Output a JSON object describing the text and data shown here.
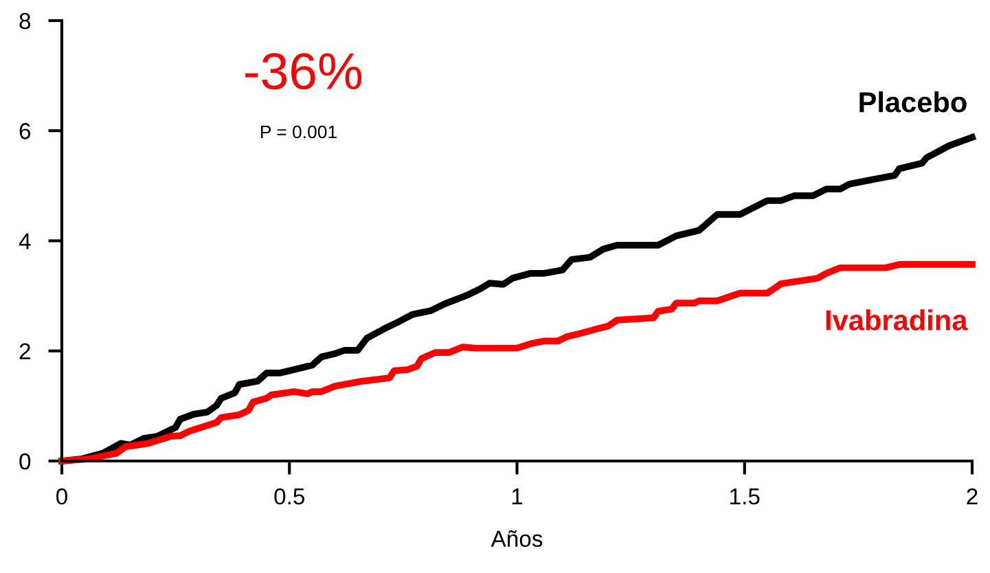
{
  "chart_data": {
    "type": "line",
    "xlabel": "Años",
    "xlim": [
      0,
      2
    ],
    "ylim": [
      0,
      8
    ],
    "xticks": [
      0,
      0.5,
      1,
      1.5,
      2
    ],
    "yticks": [
      0,
      2,
      4,
      6,
      8
    ],
    "grid": false,
    "legend": false,
    "marker": "none",
    "line_style": "solid",
    "annotations": [
      "-36%",
      "P = 0.001"
    ],
    "series": [
      {
        "name": "Placebo",
        "color": "#000000",
        "x": [
          0,
          0.045,
          0.09,
          0.13,
          0.15,
          0.18,
          0.21,
          0.25,
          0.26,
          0.29,
          0.32,
          0.34,
          0.35,
          0.38,
          0.39,
          0.43,
          0.45,
          0.48,
          0.51,
          0.55,
          0.57,
          0.6,
          0.62,
          0.65,
          0.67,
          0.71,
          0.74,
          0.77,
          0.81,
          0.84,
          0.89,
          0.92,
          0.94,
          0.97,
          0.99,
          1.03,
          1.06,
          1.1,
          1.12,
          1.16,
          1.19,
          1.22,
          1.31,
          1.35,
          1.4,
          1.44,
          1.49,
          1.55,
          1.58,
          1.61,
          1.65,
          1.68,
          1.71,
          1.73,
          1.83,
          1.84,
          1.89,
          1.9,
          1.95,
          2.0
        ],
        "values": [
          0,
          0.04,
          0.14,
          0.32,
          0.29,
          0.41,
          0.45,
          0.61,
          0.76,
          0.85,
          0.89,
          1.01,
          1.14,
          1.24,
          1.39,
          1.45,
          1.6,
          1.6,
          1.66,
          1.74,
          1.89,
          1.95,
          2.01,
          2.01,
          2.23,
          2.41,
          2.53,
          2.66,
          2.73,
          2.85,
          3.01,
          3.13,
          3.23,
          3.21,
          3.32,
          3.41,
          3.41,
          3.47,
          3.66,
          3.7,
          3.85,
          3.92,
          3.92,
          4.09,
          4.19,
          4.48,
          4.48,
          4.73,
          4.73,
          4.82,
          4.82,
          4.94,
          4.94,
          5.03,
          5.19,
          5.31,
          5.41,
          5.51,
          5.73,
          5.88
        ]
      },
      {
        "name": "Ivabradina",
        "color": "#ff0000",
        "x": [
          0,
          0.06,
          0.12,
          0.14,
          0.19,
          0.24,
          0.26,
          0.28,
          0.34,
          0.35,
          0.39,
          0.41,
          0.42,
          0.45,
          0.46,
          0.51,
          0.54,
          0.55,
          0.57,
          0.6,
          0.66,
          0.72,
          0.73,
          0.76,
          0.78,
          0.79,
          0.82,
          0.85,
          0.88,
          0.91,
          1.0,
          1.03,
          1.06,
          1.09,
          1.11,
          1.14,
          1.18,
          1.2,
          1.22,
          1.3,
          1.31,
          1.34,
          1.35,
          1.39,
          1.4,
          1.44,
          1.49,
          1.55,
          1.57,
          1.58,
          1.66,
          1.68,
          1.71,
          1.81,
          1.84,
          2.0
        ],
        "values": [
          0,
          0.04,
          0.14,
          0.26,
          0.32,
          0.45,
          0.46,
          0.54,
          0.7,
          0.79,
          0.84,
          0.92,
          1.07,
          1.14,
          1.2,
          1.26,
          1.22,
          1.26,
          1.26,
          1.36,
          1.45,
          1.51,
          1.64,
          1.66,
          1.72,
          1.86,
          1.97,
          1.97,
          2.07,
          2.05,
          2.05,
          2.13,
          2.18,
          2.18,
          2.26,
          2.32,
          2.41,
          2.45,
          2.56,
          2.6,
          2.72,
          2.76,
          2.87,
          2.87,
          2.91,
          2.91,
          3.05,
          3.05,
          3.16,
          3.22,
          3.32,
          3.41,
          3.51,
          3.51,
          3.57,
          3.57
        ]
      }
    ]
  }
}
